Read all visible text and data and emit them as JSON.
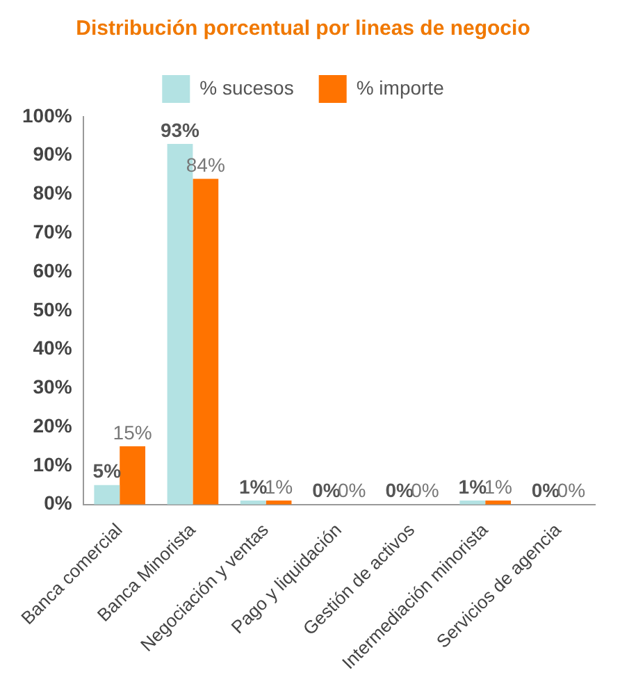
{
  "chart_data": {
    "type": "bar",
    "title": "Distribución porcentual por lineas de negocio",
    "categories": [
      "Banca comercial",
      "Banca Minorista",
      "Negociación y ventas",
      "Pago y liquidación",
      "Gestión de activos",
      "Intermediación minorista",
      "Servicios de agencia"
    ],
    "series": [
      {
        "name": "% sucesos",
        "color": "#b3e2e3",
        "values": [
          5,
          93,
          1,
          0,
          0,
          1,
          0
        ],
        "value_labels": [
          "5%",
          "93%",
          "1%",
          "0%",
          "0%",
          "1%",
          "0%"
        ]
      },
      {
        "name": "% importe",
        "color": "#ff7300",
        "values": [
          15,
          84,
          1,
          0,
          0,
          1,
          0
        ],
        "value_labels": [
          "15%",
          "84%",
          "1%",
          "0%",
          "0%",
          "1%",
          "0%"
        ]
      }
    ],
    "ylim": [
      0,
      100
    ],
    "yticks": [
      {
        "value": 0,
        "label": "0%"
      },
      {
        "value": 10,
        "label": "10%"
      },
      {
        "value": 20,
        "label": "20%"
      },
      {
        "value": 30,
        "label": "30%"
      },
      {
        "value": 40,
        "label": "40%"
      },
      {
        "value": 50,
        "label": "50%"
      },
      {
        "value": 60,
        "label": "60%"
      },
      {
        "value": 70,
        "label": "70%"
      },
      {
        "value": 80,
        "label": "80%"
      },
      {
        "value": 90,
        "label": "90%"
      },
      {
        "value": 100,
        "label": "100%"
      }
    ],
    "grid": false,
    "legend": "top"
  }
}
